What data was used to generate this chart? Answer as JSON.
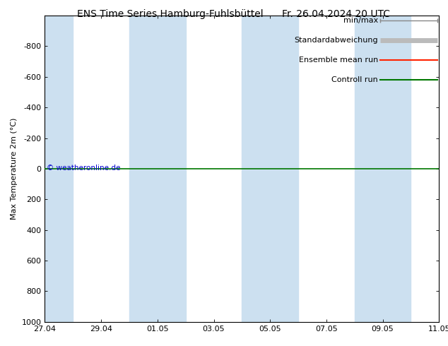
{
  "title_left": "ENS Time Series Hamburg-Fuhlsbüttel",
  "title_right": "Fr. 26.04.2024 20 UTC",
  "ylabel": "Max Temperature 2m (°C)",
  "ylim_bottom": 1000,
  "ylim_top": -1000,
  "yticks": [
    -800,
    -600,
    -400,
    -200,
    0,
    200,
    400,
    600,
    800,
    1000
  ],
  "xtick_labels": [
    "27.04",
    "29.04",
    "01.05",
    "03.05",
    "05.05",
    "07.05",
    "09.05",
    "11.05"
  ],
  "xtick_positions": [
    0,
    2,
    4,
    6,
    8,
    10,
    12,
    14
  ],
  "x_total_days": 14,
  "shaded_columns": [
    [
      0,
      1
    ],
    [
      3,
      5
    ],
    [
      7,
      9
    ],
    [
      11,
      13
    ]
  ],
  "shaded_color": "#cce0f0",
  "plot_bg_color": "#ffffff",
  "line_y": 0,
  "control_run_color": "#007700",
  "ensemble_mean_color": "#ff2200",
  "minmax_color": "#888888",
  "std_color": "#bbbbbb",
  "copyright_text": "© weatheronline.de",
  "copyright_color": "#0000cc",
  "background_color": "#ffffff",
  "legend_labels": [
    "min/max",
    "Standardabweichung",
    "Ensemble mean run",
    "Controll run"
  ],
  "legend_colors": [
    "#888888",
    "#bbbbbb",
    "#ff2200",
    "#007700"
  ],
  "title_fontsize": 10,
  "axis_fontsize": 8,
  "tick_fontsize": 8,
  "legend_fontsize": 8
}
